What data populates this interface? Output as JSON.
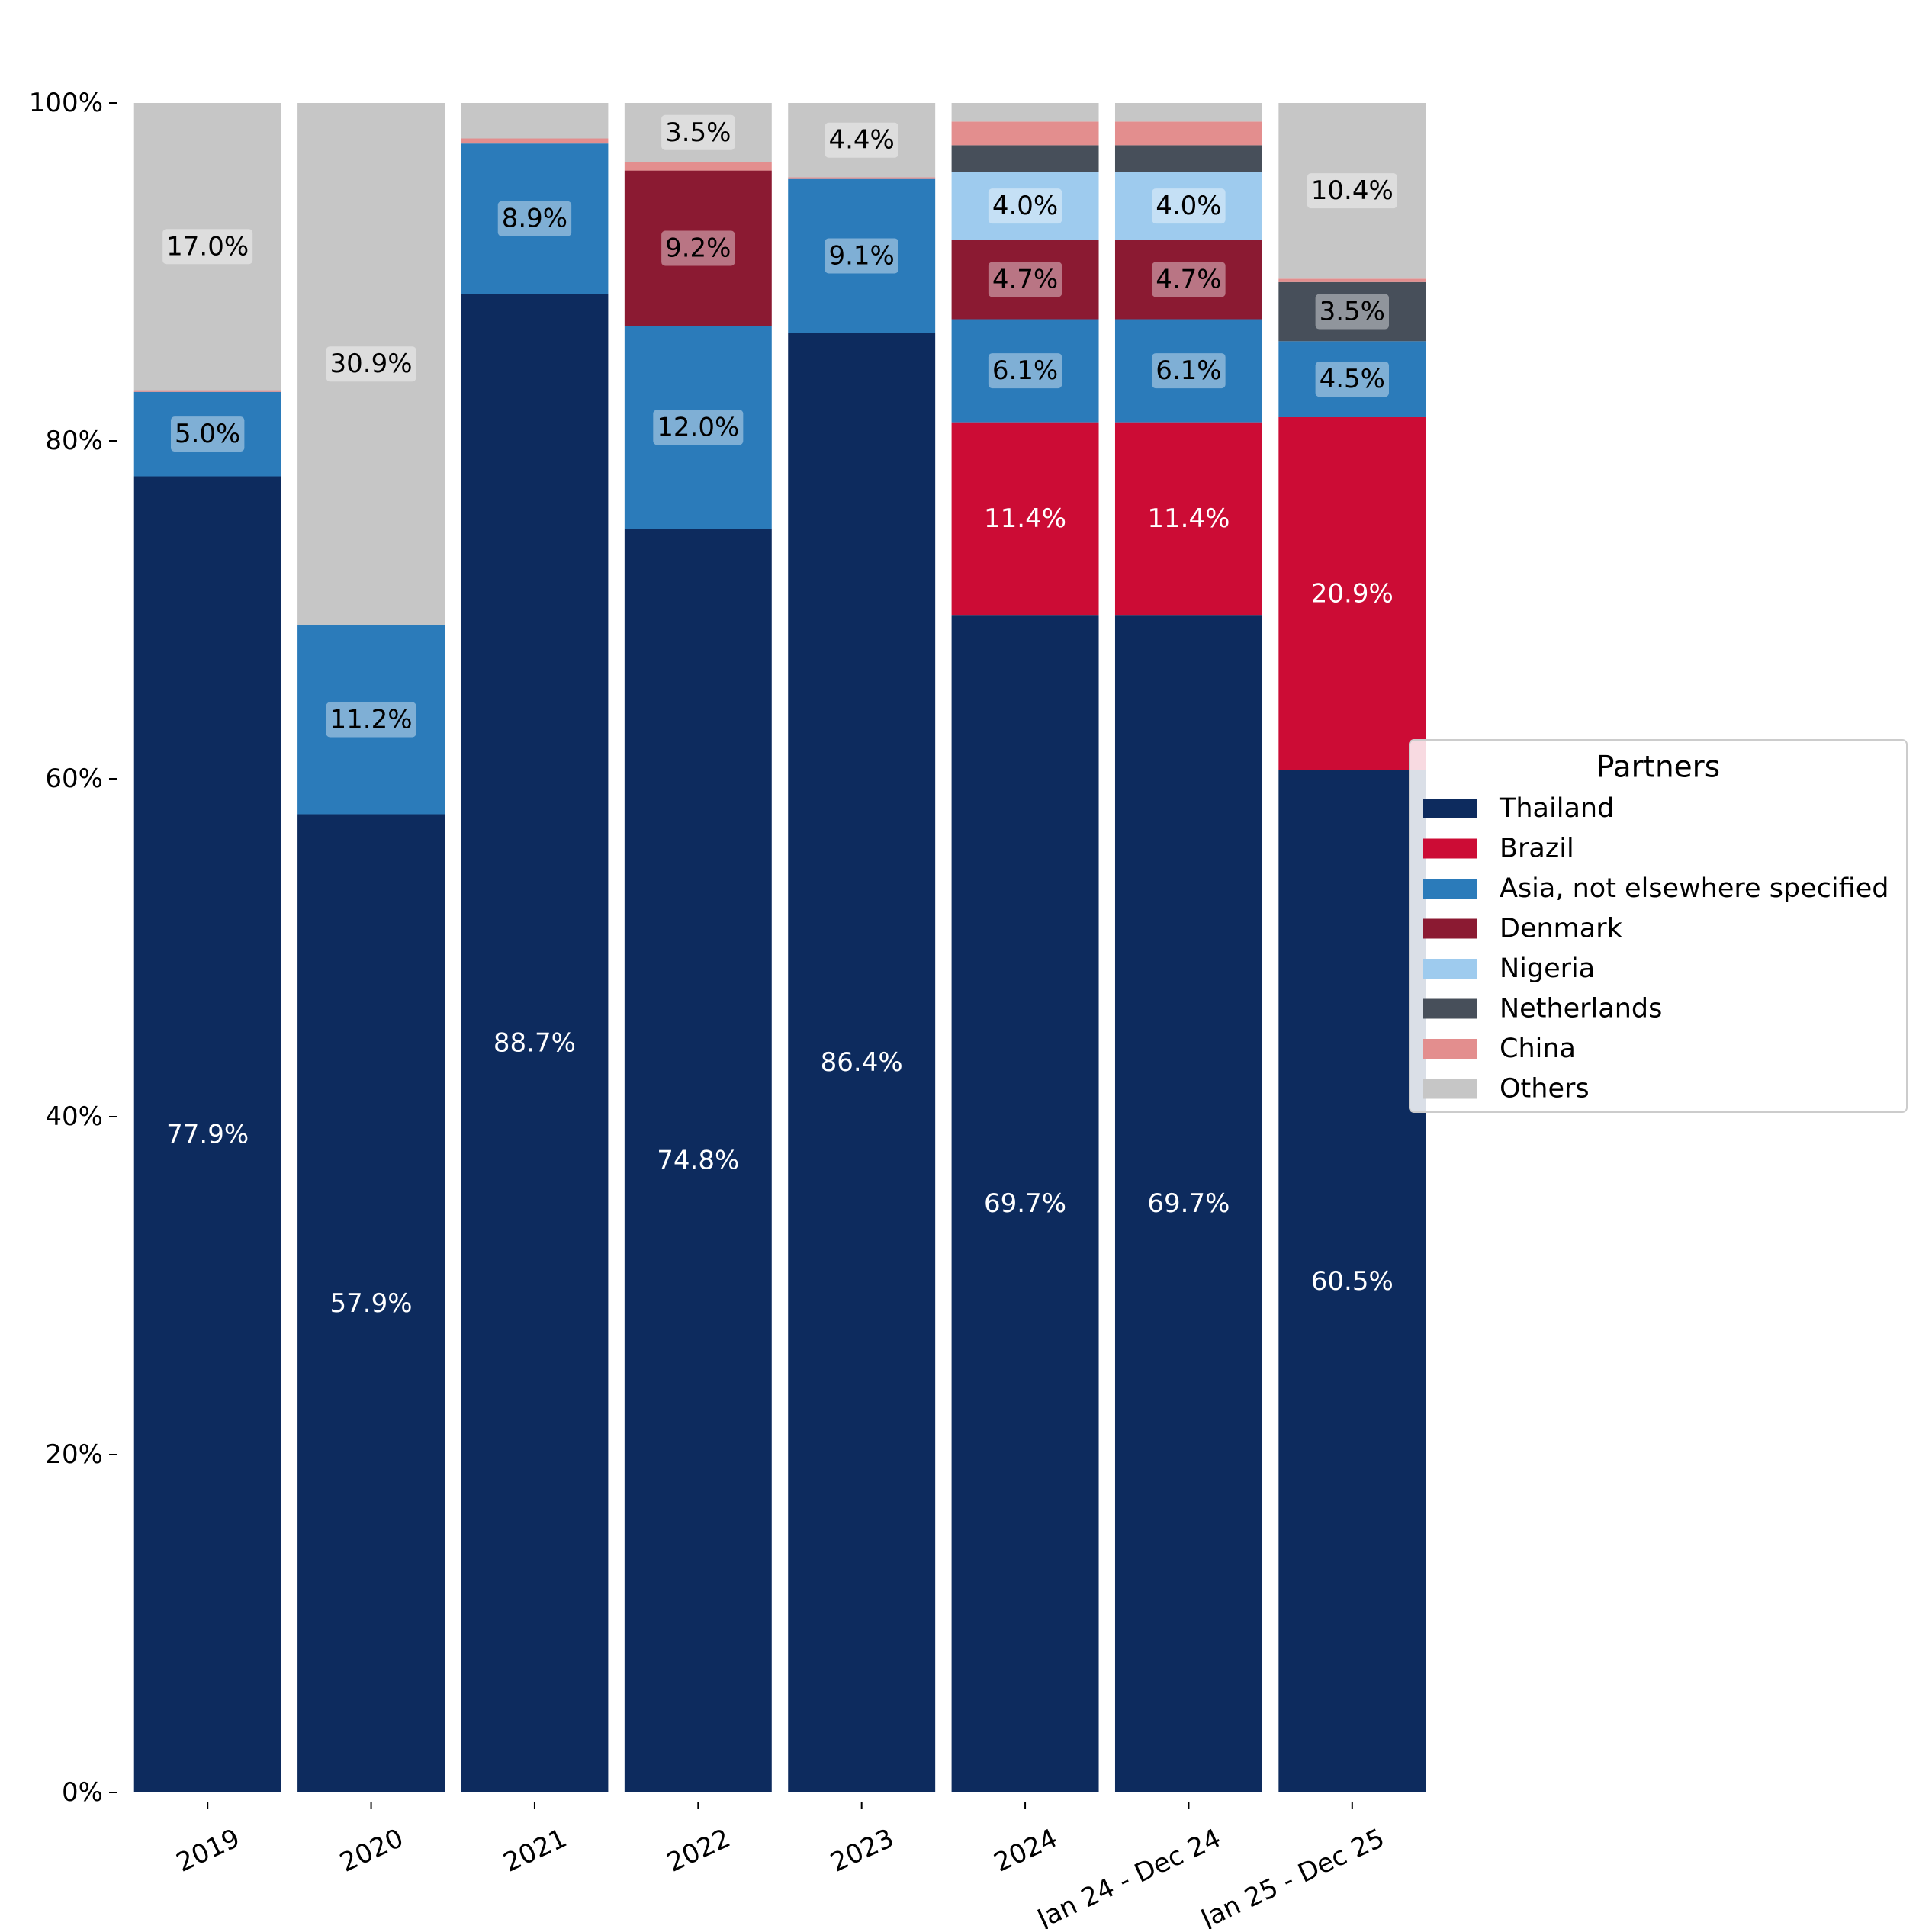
{
  "chart_data": {
    "type": "bar",
    "stacked": true,
    "title": "",
    "xlabel": "",
    "ylabel": "",
    "ylim": [
      0,
      100
    ],
    "yticks": [
      0,
      20,
      40,
      60,
      80,
      100
    ],
    "ytick_labels": [
      "0%",
      "20%",
      "40%",
      "60%",
      "80%",
      "100%"
    ],
    "categories": [
      "2019",
      "2020",
      "2021",
      "2022",
      "2023",
      "2024",
      "Jan 24 - Dec 24",
      "Jan 25 - Dec 25"
    ],
    "legend": {
      "title": "Partners",
      "placement": "center-right"
    },
    "grid": false,
    "series": [
      {
        "name": "Thailand",
        "color": "#0d2b5e",
        "label_color": "#ffffff",
        "label_boxed": false,
        "values": [
          77.9,
          57.9,
          88.7,
          74.8,
          86.4,
          69.7,
          69.7,
          60.5
        ],
        "labels": [
          "77.9%",
          "57.9%",
          "88.7%",
          "74.8%",
          "86.4%",
          "69.7%",
          "69.7%",
          "60.5%"
        ]
      },
      {
        "name": "Brazil",
        "color": "#cc0c35",
        "label_color": "#ffffff",
        "label_boxed": false,
        "values": [
          0,
          0,
          0,
          0,
          0,
          11.4,
          11.4,
          20.9
        ],
        "labels": [
          "",
          "",
          "",
          "",
          "",
          "11.4%",
          "11.4%",
          "20.9%"
        ]
      },
      {
        "name": "Asia, not elsewhere specified",
        "color": "#2b7bba",
        "label_color": "#000000",
        "label_boxed": true,
        "values": [
          5.0,
          11.2,
          8.9,
          12.0,
          9.1,
          6.1,
          6.1,
          4.5
        ],
        "labels": [
          "5.0%",
          "11.2%",
          "8.9%",
          "12.0%",
          "9.1%",
          "6.1%",
          "6.1%",
          "4.5%"
        ]
      },
      {
        "name": "Denmark",
        "color": "#8b1a32",
        "label_color": "#000000",
        "label_boxed": true,
        "values": [
          0,
          0,
          0,
          9.2,
          0,
          4.7,
          4.7,
          0
        ],
        "labels": [
          "",
          "",
          "",
          "9.2%",
          "",
          "4.7%",
          "4.7%",
          ""
        ]
      },
      {
        "name": "Nigeria",
        "color": "#9ecbee",
        "label_color": "#000000",
        "label_boxed": true,
        "values": [
          0,
          0,
          0,
          0,
          0,
          4.0,
          4.0,
          0
        ],
        "labels": [
          "",
          "",
          "",
          "",
          "",
          "4.0%",
          "4.0%",
          ""
        ]
      },
      {
        "name": "Netherlands",
        "color": "#474f5a",
        "label_color": "#000000",
        "label_boxed": true,
        "values": [
          0,
          0,
          0,
          0,
          0,
          1.6,
          1.6,
          3.5
        ],
        "labels": [
          "",
          "",
          "",
          "",
          "",
          "",
          "",
          "3.5%"
        ]
      },
      {
        "name": "China",
        "color": "#e38e8e",
        "label_color": "#000000",
        "label_boxed": true,
        "values": [
          0.1,
          0,
          0.3,
          0.5,
          0.1,
          1.4,
          1.4,
          0.2
        ],
        "labels": [
          "",
          "",
          "",
          "",
          "",
          "",
          "",
          ""
        ]
      },
      {
        "name": "Others",
        "color": "#c6c6c6",
        "label_color": "#000000",
        "label_boxed": true,
        "values": [
          17.0,
          30.9,
          2.1,
          3.5,
          4.4,
          1.1,
          1.1,
          10.4
        ],
        "labels": [
          "17.0%",
          "30.9%",
          "",
          "3.5%",
          "4.4%",
          "",
          "",
          "10.4%"
        ]
      }
    ]
  }
}
